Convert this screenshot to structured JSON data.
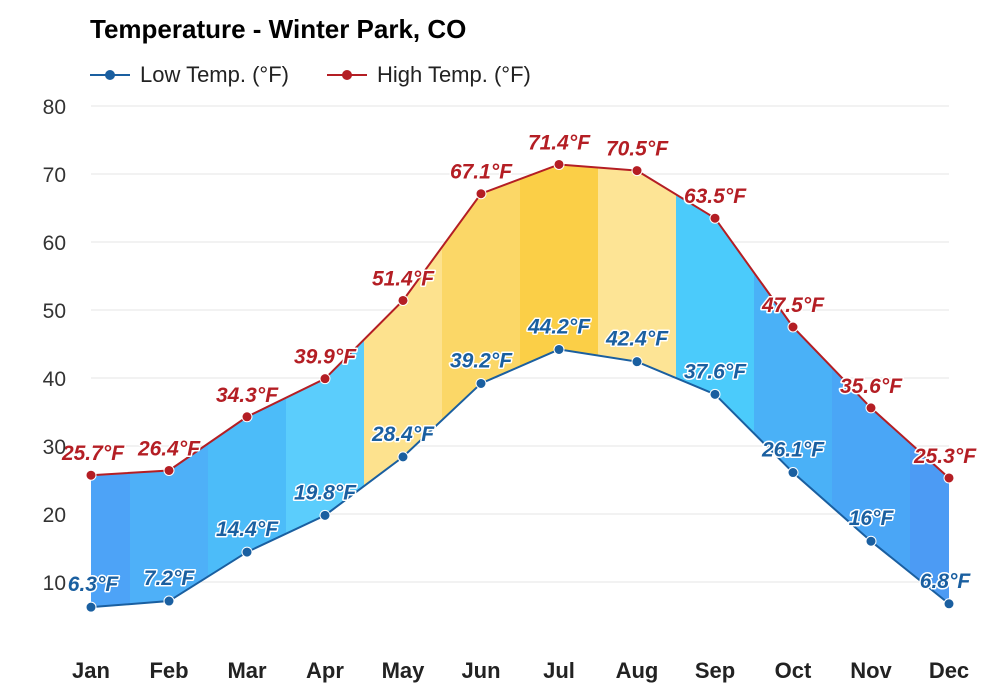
{
  "title": "Temperature - Winter Park, CO",
  "legend": {
    "low_label": "Low Temp. (°F)",
    "high_label": "High Temp. (°F)"
  },
  "colors": {
    "low_line": "#1a5fa0",
    "high_line": "#b41e24"
  },
  "chart_data": {
    "type": "area",
    "title": "Temperature - Winter Park, CO",
    "xlabel": "",
    "ylabel": "",
    "categories": [
      "Jan",
      "Feb",
      "Mar",
      "Apr",
      "May",
      "Jun",
      "Jul",
      "Aug",
      "Sep",
      "Oct",
      "Nov",
      "Dec"
    ],
    "ylim": [
      0,
      80
    ],
    "yticks": [
      10,
      20,
      30,
      40,
      50,
      60,
      70,
      80
    ],
    "grid": true,
    "legend_position": "top-left",
    "series": [
      {
        "name": "Low Temp. (°F)",
        "values": [
          6.3,
          7.2,
          14.4,
          19.8,
          28.4,
          39.2,
          44.2,
          42.4,
          37.6,
          26.1,
          16,
          6.8
        ],
        "labels": [
          "6.3°F",
          "7.2°F",
          "14.4°F",
          "19.8°F",
          "28.4°F",
          "39.2°F",
          "44.2°F",
          "42.4°F",
          "37.6°F",
          "26.1°F",
          "16°F",
          "6.8°F"
        ]
      },
      {
        "name": "High Temp. (°F)",
        "values": [
          25.7,
          26.4,
          34.3,
          39.9,
          51.4,
          67.1,
          71.4,
          70.5,
          63.5,
          47.5,
          35.6,
          25.3
        ],
        "labels": [
          "25.7°F",
          "26.4°F",
          "34.3°F",
          "39.9°F",
          "51.4°F",
          "67.1°F",
          "71.4°F",
          "70.5°F",
          "63.5°F",
          "47.5°F",
          "35.6°F",
          "25.3°F"
        ]
      }
    ],
    "band_colors": [
      "#4da3f7",
      "#4eb0f8",
      "#4cbcf9",
      "#5bcdfc",
      "#fde28e",
      "#fbd767",
      "#fbcf47",
      "#fde495",
      "#4bcbfb",
      "#4ab1f7",
      "#4aa6f6",
      "#4c9bf4"
    ]
  }
}
